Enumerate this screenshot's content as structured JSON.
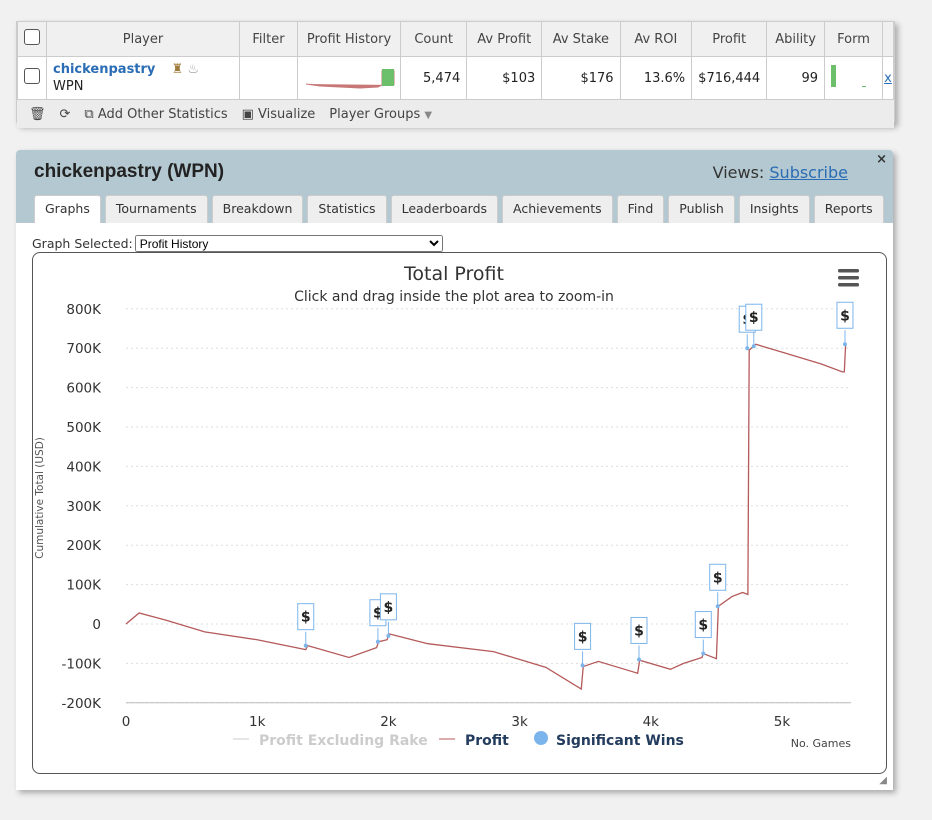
{
  "table": {
    "headers": [
      "Player",
      "Filter",
      "Profit History",
      "Count",
      "Av Profit",
      "Av Stake",
      "Av ROI",
      "Profit",
      "Ability",
      "Form"
    ],
    "row": {
      "player": "chickenpastry",
      "network": "WPN",
      "count": "5,474",
      "av_profit": "$103",
      "av_stake": "$176",
      "av_roi": "13.6%",
      "profit": "$716,444",
      "ability": "99",
      "remove": "x"
    }
  },
  "toolbar": {
    "add_stats": "Add Other Statistics",
    "visualize": "Visualize",
    "player_groups": "Player Groups"
  },
  "panel": {
    "title": "chickenpastry (WPN)",
    "views_label": "Views:",
    "subscribe": "Subscribe",
    "close": "×",
    "tabs": [
      "Graphs",
      "Tournaments",
      "Breakdown",
      "Statistics",
      "Leaderboards",
      "Achievements",
      "Find",
      "Publish",
      "Insights",
      "Reports"
    ],
    "graph_selected_label": "Graph Selected:",
    "graph_selected": "Profit History"
  },
  "chart_data": {
    "type": "line",
    "title": "Total Profit",
    "subtitle": "Click and drag inside the plot area to zoom-in",
    "ylabel": "Cumulative Total (USD)",
    "xlabel": "No. Games",
    "ylim": [
      -200000,
      800000
    ],
    "xlim": [
      0,
      5500
    ],
    "yticks": [
      "800K",
      "700K",
      "600K",
      "500K",
      "400K",
      "300K",
      "200K",
      "100K",
      "0",
      "-100K",
      "-200K"
    ],
    "xticks": [
      "0",
      "1k",
      "2k",
      "3k",
      "4k",
      "5k"
    ],
    "legend": [
      "Profit Excluding Rake",
      "Profit",
      "Significant Wins"
    ],
    "series": [
      {
        "name": "Profit",
        "color": "#b55a5a",
        "points": [
          [
            0,
            0
          ],
          [
            100,
            28
          ],
          [
            300,
            10
          ],
          [
            600,
            -20
          ],
          [
            1000,
            -40
          ],
          [
            1370,
            -65
          ],
          [
            1385,
            -55
          ],
          [
            1700,
            -85
          ],
          [
            1910,
            -60
          ],
          [
            1925,
            -45
          ],
          [
            1990,
            -40
          ],
          [
            2005,
            -25
          ],
          [
            2300,
            -50
          ],
          [
            2800,
            -70
          ],
          [
            3200,
            -110
          ],
          [
            3470,
            -165
          ],
          [
            3485,
            -108
          ],
          [
            3600,
            -95
          ],
          [
            3900,
            -125
          ],
          [
            3915,
            -92
          ],
          [
            4150,
            -115
          ],
          [
            4250,
            -100
          ],
          [
            4390,
            -85
          ],
          [
            4400,
            -75
          ],
          [
            4500,
            -88
          ],
          [
            4515,
            45
          ],
          [
            4620,
            70
          ],
          [
            4700,
            80
          ],
          [
            4740,
            75
          ],
          [
            4750,
            695
          ],
          [
            4800,
            710
          ],
          [
            5000,
            690
          ],
          [
            5300,
            660
          ],
          [
            5460,
            640
          ],
          [
            5475,
            640
          ],
          [
            5485,
            710
          ]
        ]
      }
    ],
    "significant_wins": [
      [
        1370,
        -55
      ],
      [
        1920,
        -45
      ],
      [
        2000,
        -30
      ],
      [
        3480,
        -105
      ],
      [
        3910,
        -90
      ],
      [
        4400,
        -75
      ],
      [
        4510,
        45
      ],
      [
        4735,
        700
      ],
      [
        4785,
        705
      ],
      [
        5480,
        710
      ]
    ],
    "flag_label": "$"
  }
}
